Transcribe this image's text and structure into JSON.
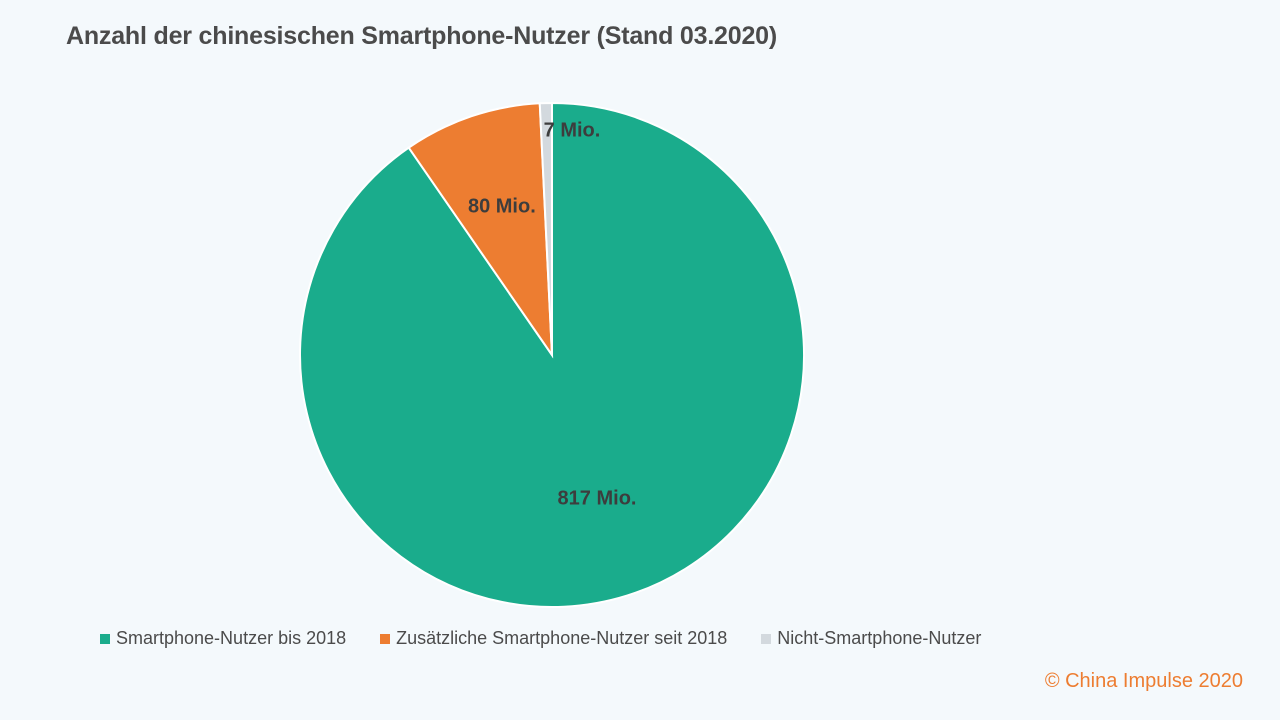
{
  "chart_data": {
    "type": "pie",
    "title": "Anzahl der chinesischen Smartphone-Nutzer (Stand 03.2020)",
    "slices": [
      {
        "name": "Smartphone-Nutzer bis 2018",
        "value": 817,
        "label": "817 Mio.",
        "color": "#1aac8c"
      },
      {
        "name": "Zusätzliche Smartphone-Nutzer seit 2018",
        "value": 80,
        "label": "80 Mio.",
        "color": "#ed7d31"
      },
      {
        "name": "Nicht-Smartphone-Nutzer",
        "value": 7,
        "label": "7 Mio.",
        "color": "#d3d9de"
      }
    ],
    "legend_position": "bottom"
  },
  "copyright": "© China Impulse 2020"
}
